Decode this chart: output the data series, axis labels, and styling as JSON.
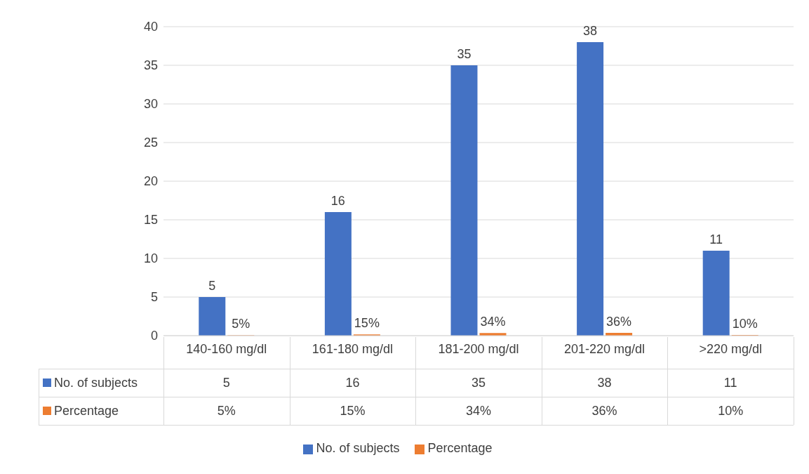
{
  "chart_data": {
    "type": "bar",
    "categories": [
      "140-160 mg/dl",
      "161-180 mg/dl",
      "181-200 mg/dl",
      "201-220 mg/dl",
      ">220 mg/dl"
    ],
    "series": [
      {
        "name": "No. of subjects",
        "color": "#4472c4",
        "values": [
          5,
          16,
          35,
          38,
          11
        ],
        "value_labels": [
          "5",
          "16",
          "35",
          "38",
          "11"
        ]
      },
      {
        "name": "Percentage",
        "color": "#ed7d31",
        "values": [
          0.05,
          0.15,
          0.34,
          0.36,
          0.1
        ],
        "value_labels": [
          "5%",
          "15%",
          "34%",
          "36%",
          "10%"
        ]
      }
    ],
    "ylim": [
      0,
      40
    ],
    "yticks": [
      0,
      5,
      10,
      15,
      20,
      25,
      30,
      35,
      40
    ],
    "grid": "y",
    "legend": "bottom"
  }
}
